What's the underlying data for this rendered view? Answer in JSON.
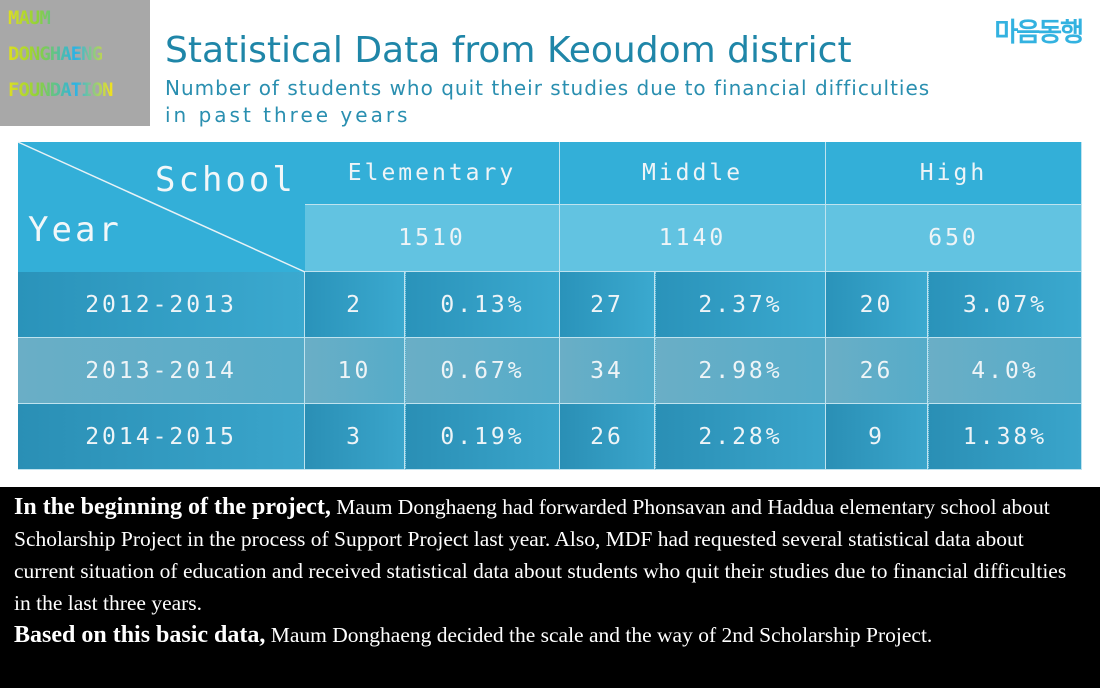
{
  "logo": {
    "lines": [
      "MAUM",
      "DONGHAENG",
      "FOUNDATION"
    ]
  },
  "brand_logo": "마음동행",
  "header": {
    "title": "Statistical Data from Keoudom district",
    "subtitle_lines": [
      "Number of students who quit their studies due to financial difficulties",
      "in past three years"
    ]
  },
  "table": {
    "corner": {
      "column_label": "School",
      "row_label": "Year"
    },
    "columns": [
      {
        "name": "Elementary",
        "total": "1510"
      },
      {
        "name": "Middle",
        "total": "1140"
      },
      {
        "name": "High",
        "total": "650"
      }
    ],
    "rows": [
      {
        "year": "2012-2013",
        "cells": [
          "2",
          "0.13%",
          "27",
          "2.37%",
          "20",
          "3.07%"
        ]
      },
      {
        "year": "2013-2014",
        "cells": [
          "10",
          "0.67%",
          "34",
          "2.98%",
          "26",
          "4.0%"
        ]
      },
      {
        "year": "2014-2015",
        "cells": [
          "3",
          "0.19%",
          "26",
          "2.28%",
          "9",
          "1.38%"
        ]
      }
    ]
  },
  "body": {
    "paragraphs": [
      {
        "lead": "In the beginning of the project,",
        "text": " Maum Donghaeng had forwarded Phonsavan and Haddua elementary school about Scholarship Project in the process of Support Project last year. Also, MDF had requested several statistical data about current situation of education and received statistical data about students who quit their studies due to financial difficulties in the last three years."
      },
      {
        "lead": "Based on this basic data,",
        "text": " Maum Donghaeng decided the scale and the way of 2nd Scholarship Project."
      }
    ]
  }
}
